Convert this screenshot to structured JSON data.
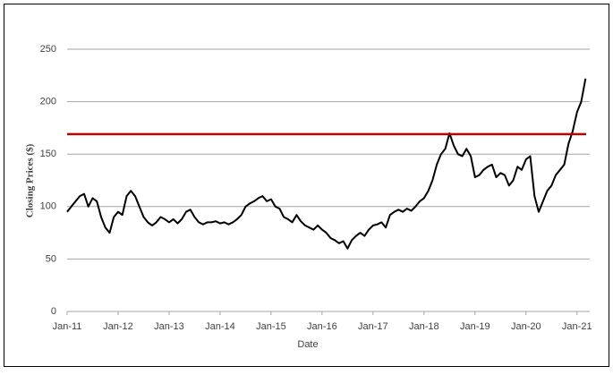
{
  "chart_data": {
    "type": "line",
    "xlabel": "Date",
    "ylabel": "Closing Prices ($)",
    "x": [
      0,
      1,
      2,
      3,
      4,
      5,
      6,
      7,
      8,
      9,
      10,
      11,
      12,
      13,
      14,
      15,
      16,
      17,
      18,
      19,
      20,
      21,
      22,
      23,
      24,
      25,
      26,
      27,
      28,
      29,
      30,
      31,
      32,
      33,
      34,
      35,
      36,
      37,
      38,
      39,
      40,
      41,
      42,
      43,
      44,
      45,
      46,
      47,
      48,
      49,
      50,
      51,
      52,
      53,
      54,
      55,
      56,
      57,
      58,
      59,
      60,
      61,
      62,
      63,
      64,
      65,
      66,
      67,
      68,
      69,
      70,
      71,
      72,
      73,
      74,
      75,
      76,
      77,
      78,
      79,
      80,
      81,
      82,
      83,
      84,
      85,
      86,
      87,
      88,
      89,
      90,
      91,
      92,
      93,
      94,
      95,
      96,
      97,
      98,
      99,
      100,
      101,
      102,
      103,
      104,
      105,
      106,
      107,
      108,
      109,
      110,
      111,
      112,
      113,
      114,
      115,
      116,
      117,
      118,
      119,
      120,
      121,
      122
    ],
    "values": [
      95,
      100,
      105,
      110,
      112,
      100,
      108,
      105,
      90,
      80,
      75,
      90,
      95,
      92,
      110,
      115,
      110,
      100,
      90,
      85,
      82,
      85,
      90,
      88,
      85,
      88,
      84,
      88,
      95,
      97,
      90,
      85,
      83,
      85,
      85,
      86,
      84,
      85,
      83,
      85,
      88,
      92,
      100,
      103,
      105,
      108,
      110,
      105,
      107,
      100,
      98,
      90,
      88,
      85,
      92,
      86,
      82,
      80,
      78,
      82,
      78,
      75,
      70,
      68,
      65,
      67,
      60,
      68,
      72,
      75,
      72,
      78,
      82,
      83,
      85,
      80,
      92,
      95,
      97,
      95,
      98,
      96,
      100,
      105,
      108,
      115,
      125,
      140,
      150,
      155,
      170,
      158,
      150,
      148,
      155,
      148,
      128,
      130,
      135,
      138,
      140,
      128,
      132,
      130,
      120,
      125,
      138,
      135,
      145,
      148,
      110,
      95,
      105,
      115,
      120,
      130,
      135,
      140,
      160,
      172,
      190,
      200,
      222
    ],
    "color": "#000000",
    "reference_line": {
      "value": 169,
      "color": "#c00000"
    },
    "xlim": [
      0,
      123
    ],
    "xticks": [
      {
        "value": 0,
        "label": "Jan-11"
      },
      {
        "value": 12,
        "label": "Jan-12"
      },
      {
        "value": 24,
        "label": "Jan-13"
      },
      {
        "value": 36,
        "label": "Jan-14"
      },
      {
        "value": 48,
        "label": "Jan-15"
      },
      {
        "value": 60,
        "label": "Jan-16"
      },
      {
        "value": 72,
        "label": "Jan-17"
      },
      {
        "value": 84,
        "label": "Jan-18"
      },
      {
        "value": 96,
        "label": "Jan-19"
      },
      {
        "value": 108,
        "label": "Jan-20"
      },
      {
        "value": 120,
        "label": "Jan-21"
      }
    ],
    "ylim": [
      0,
      250
    ],
    "yticks": [
      0,
      50,
      100,
      150,
      200,
      250
    ],
    "grid": true
  }
}
